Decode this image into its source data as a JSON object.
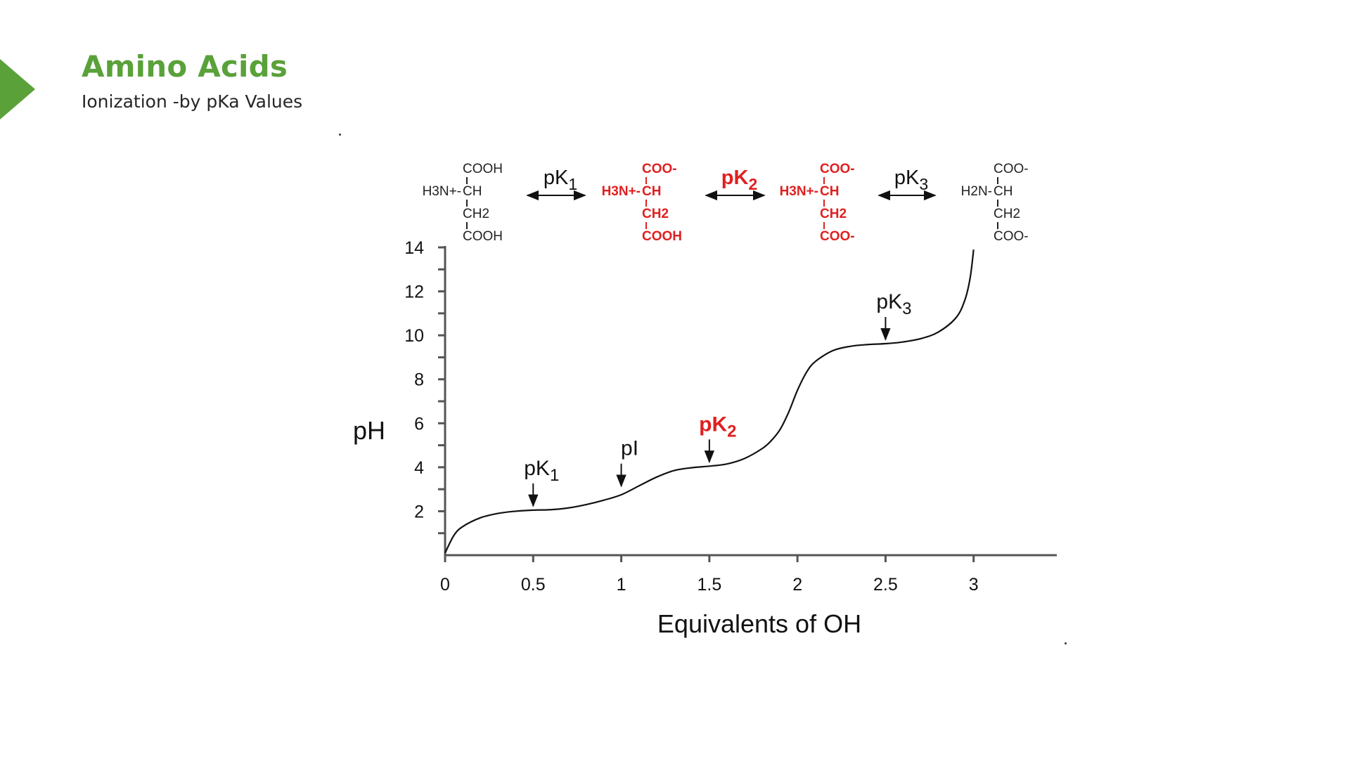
{
  "slide": {
    "title": "Amino Acids",
    "subtitle": "Ionization -by pKa Values",
    "accent_color": "#5aa13a"
  },
  "chart_data": {
    "type": "line",
    "title": "",
    "xlabel": "Equivalents of OH",
    "ylabel": "pH",
    "xlim": [
      0,
      3.5
    ],
    "ylim": [
      0,
      14
    ],
    "x_ticks": [
      0,
      0.5,
      1,
      1.5,
      2,
      2.5,
      3
    ],
    "x_tick_labels": [
      "0",
      "0.5",
      "1",
      "1.5",
      "2",
      "2.5",
      "3"
    ],
    "y_ticks": [
      2,
      4,
      6,
      8,
      10,
      12,
      14
    ],
    "y_tick_labels": [
      "2",
      "4",
      "6",
      "8",
      "10",
      "12",
      "14"
    ],
    "grid": false,
    "series": [
      {
        "color": "#111111",
        "x": [
          0,
          0.05,
          0.1,
          0.2,
          0.3,
          0.4,
          0.5,
          0.6,
          0.7,
          0.8,
          0.9,
          1.0,
          1.1,
          1.2,
          1.3,
          1.4,
          1.5,
          1.6,
          1.7,
          1.8,
          1.85,
          1.9,
          1.95,
          2.0,
          2.05,
          2.1,
          2.2,
          2.3,
          2.4,
          2.5,
          2.6,
          2.7,
          2.8,
          2.9,
          2.95,
          2.98,
          3.0
        ],
        "y": [
          0.1,
          0.9,
          1.3,
          1.7,
          1.9,
          2.0,
          2.05,
          2.07,
          2.15,
          2.3,
          2.5,
          2.75,
          3.15,
          3.55,
          3.85,
          3.98,
          4.05,
          4.15,
          4.4,
          4.85,
          5.2,
          5.7,
          6.5,
          7.5,
          8.3,
          8.8,
          9.3,
          9.5,
          9.58,
          9.62,
          9.7,
          9.85,
          10.15,
          10.8,
          11.6,
          12.6,
          13.9
        ]
      }
    ],
    "annotations": [
      {
        "label": "pK",
        "sub": "1",
        "x": 0.5,
        "y": 2.05,
        "color": "#111111"
      },
      {
        "label": "pI",
        "sub": "",
        "x": 1.0,
        "y": 2.95,
        "color": "#111111"
      },
      {
        "label": "pK",
        "sub": "2",
        "x": 1.5,
        "y": 4.05,
        "color": "#e02020"
      },
      {
        "label": "pK",
        "sub": "3",
        "x": 2.5,
        "y": 9.62,
        "color": "#111111"
      }
    ],
    "species": [
      {
        "color": "#222222",
        "lines": [
          "COOH",
          "H3N+-CH",
          "CH2",
          "COOH"
        ]
      },
      {
        "color": "#e02020",
        "lines": [
          "COO-",
          "H3N+-CH",
          "CH2",
          "COOH"
        ]
      },
      {
        "color": "#e02020",
        "lines": [
          "COO-",
          "H3N+-CH",
          "CH2",
          "COO-"
        ]
      },
      {
        "color": "#222222",
        "lines": [
          "COO-",
          "H2N-CH",
          "CH2",
          "COO-"
        ]
      }
    ],
    "equilibria": [
      {
        "label": "pK",
        "sub": "1",
        "color": "#111111"
      },
      {
        "label": "pK",
        "sub": "2",
        "color": "#e02020"
      },
      {
        "label": "pK",
        "sub": "3",
        "color": "#111111"
      }
    ]
  }
}
